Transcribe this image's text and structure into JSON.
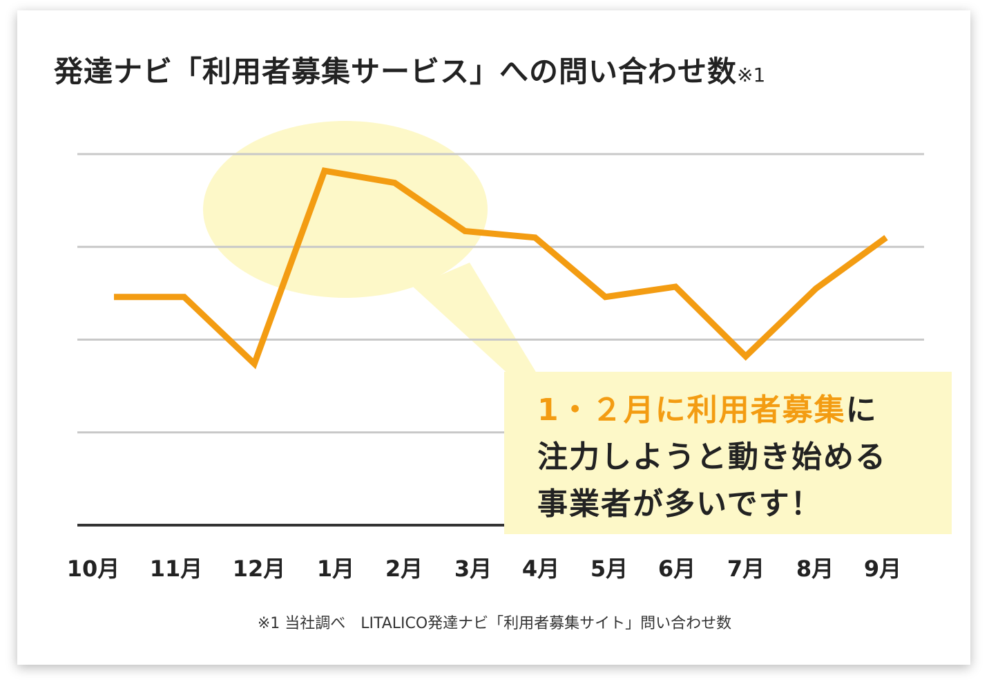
{
  "chart_data": {
    "type": "line",
    "title": "発達ナビ「利用者募集サービス」への問い合わせ数",
    "title_note": "※1",
    "categories": [
      "10月",
      "11月",
      "12月",
      "1月",
      "2月",
      "3月",
      "4月",
      "5月",
      "6月",
      "7月",
      "8月",
      "9月"
    ],
    "series": [
      {
        "name": "問い合わせ数",
        "values": [
          2.46,
          2.46,
          1.74,
          3.82,
          3.69,
          3.17,
          3.1,
          2.46,
          2.57,
          1.82,
          2.55,
          3.1
        ],
        "color": "#f39c12"
      }
    ],
    "ylim": [
      0,
      4
    ],
    "y_unit_note": "relative (no y-axis labels shown; gridline = 1 unit)",
    "grid": true,
    "xlabel": "",
    "ylabel": "",
    "highlight": "1月-2月",
    "callout": {
      "highlight": "1・２月に利用者募集",
      "line1_rest": "に",
      "line2": "注力しようと動き始める",
      "line3": "事業者が多いです！"
    },
    "footnote": "※1 当社調べ　LITALICO発達ナビ「利用者募集サイト」問い合わせ数",
    "colors": {
      "line": "#f39c12",
      "highlight": "#fdf8c8",
      "grid": "#c8c8c8",
      "axis": "#333333"
    }
  }
}
